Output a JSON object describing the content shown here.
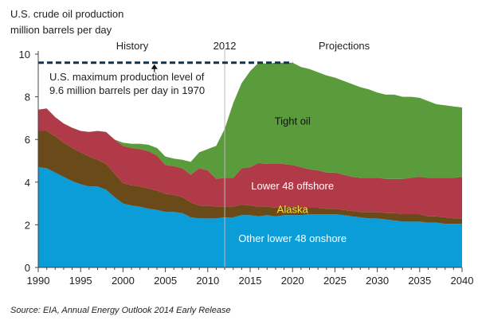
{
  "chart_data": {
    "type": "area",
    "title_line1": "U.S. crude oil production",
    "title_line2": "million barrels per day",
    "xlim": [
      1990,
      2040
    ],
    "ylim": [
      0,
      10
    ],
    "x_ticks": [
      "1990",
      "1995",
      "2000",
      "2005",
      "2010",
      "2015",
      "2020",
      "2025",
      "2030",
      "2035",
      "2040"
    ],
    "y_ticks": [
      "0",
      "2",
      "4",
      "6",
      "8",
      "10"
    ],
    "divider_year": 2012,
    "divider_label": "2012",
    "history_label": "History",
    "projections_label": "Projections",
    "max_level": 9.6,
    "max_annotation_line1": "U.S. maximum production level of",
    "max_annotation_line2": "9.6 million barrels per day in 1970",
    "source": "Source:  EIA, Annual Energy Outlook 2014 Early Release",
    "colors": {
      "onshore": "#0b9dd8",
      "alaska": "#6b4a1a",
      "offshore": "#b03a48",
      "tight": "#5a9c3c",
      "axis": "#444444",
      "dash": "#0d3455",
      "divider": "#bbbbbb"
    },
    "x": [
      1990,
      1991,
      1992,
      1993,
      1994,
      1995,
      1996,
      1997,
      1998,
      1999,
      2000,
      2001,
      2002,
      2003,
      2004,
      2005,
      2006,
      2007,
      2008,
      2009,
      2010,
      2011,
      2012,
      2013,
      2014,
      2015,
      2016,
      2017,
      2018,
      2019,
      2020,
      2021,
      2022,
      2023,
      2024,
      2025,
      2026,
      2027,
      2028,
      2029,
      2030,
      2031,
      2032,
      2033,
      2034,
      2035,
      2036,
      2037,
      2038,
      2039,
      2040
    ],
    "series": [
      {
        "name": "Other lower 48 onshore",
        "label_year": 2020,
        "label_value": 1.2,
        "values": [
          4.7,
          4.65,
          4.45,
          4.25,
          4.05,
          3.9,
          3.8,
          3.8,
          3.65,
          3.3,
          3.0,
          2.9,
          2.85,
          2.75,
          2.7,
          2.6,
          2.6,
          2.55,
          2.35,
          2.3,
          2.3,
          2.3,
          2.35,
          2.35,
          2.45,
          2.45,
          2.4,
          2.45,
          2.4,
          2.45,
          2.45,
          2.45,
          2.5,
          2.5,
          2.5,
          2.5,
          2.45,
          2.4,
          2.35,
          2.3,
          2.3,
          2.25,
          2.2,
          2.15,
          2.15,
          2.15,
          2.1,
          2.1,
          2.05,
          2.05,
          2.05
        ]
      },
      {
        "name": "Alaska",
        "label_year": 2020,
        "label_value": 2.55,
        "values": [
          1.7,
          1.75,
          1.7,
          1.6,
          1.55,
          1.5,
          1.4,
          1.25,
          1.2,
          1.1,
          0.95,
          0.95,
          0.95,
          0.95,
          0.9,
          0.85,
          0.8,
          0.75,
          0.7,
          0.6,
          0.6,
          0.55,
          0.5,
          0.5,
          0.5,
          0.45,
          0.45,
          0.4,
          0.4,
          0.4,
          0.4,
          0.35,
          0.3,
          0.3,
          0.25,
          0.25,
          0.25,
          0.25,
          0.25,
          0.3,
          0.3,
          0.3,
          0.35,
          0.35,
          0.35,
          0.35,
          0.3,
          0.3,
          0.3,
          0.25,
          0.25
        ]
      },
      {
        "name": "Lower 48 offshore",
        "label_year": 2020,
        "label_value": 3.65,
        "values": [
          1.0,
          1.05,
          0.9,
          0.9,
          0.95,
          1.0,
          1.15,
          1.35,
          1.5,
          1.6,
          1.75,
          1.75,
          1.75,
          1.75,
          1.65,
          1.35,
          1.35,
          1.35,
          1.3,
          1.75,
          1.65,
          1.3,
          1.35,
          1.35,
          1.7,
          1.8,
          2.05,
          2.0,
          2.05,
          2.0,
          1.95,
          1.9,
          1.8,
          1.75,
          1.7,
          1.7,
          1.65,
          1.6,
          1.6,
          1.6,
          1.6,
          1.6,
          1.6,
          1.65,
          1.7,
          1.75,
          1.8,
          1.8,
          1.85,
          1.9,
          1.95
        ]
      },
      {
        "name": "Tight oil",
        "label_year": 2020,
        "label_value": 6.7,
        "values": [
          0,
          0,
          0,
          0,
          0,
          0,
          0,
          0,
          0,
          0,
          0.15,
          0.2,
          0.25,
          0.3,
          0.35,
          0.4,
          0.35,
          0.4,
          0.6,
          0.75,
          1.0,
          1.55,
          2.3,
          3.5,
          4.0,
          4.5,
          4.7,
          4.7,
          4.75,
          4.75,
          4.8,
          4.7,
          4.7,
          4.6,
          4.55,
          4.45,
          4.4,
          4.35,
          4.25,
          4.15,
          4.0,
          3.95,
          3.95,
          3.85,
          3.8,
          3.7,
          3.6,
          3.45,
          3.4,
          3.35,
          3.25
        ]
      }
    ]
  }
}
